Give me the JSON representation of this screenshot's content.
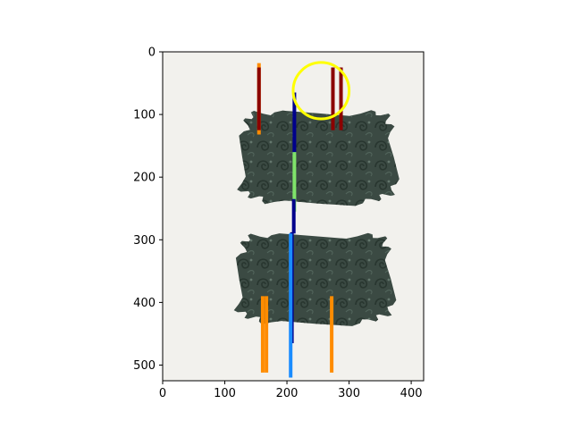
{
  "plot": {
    "x_range": [
      0,
      420
    ],
    "y_range": [
      0,
      525
    ],
    "y_inverted": true,
    "x_ticks": [
      "0",
      "100",
      "200",
      "300",
      "400"
    ],
    "x_tick_values": [
      0,
      100,
      200,
      300,
      400
    ],
    "y_ticks": [
      "0",
      "100",
      "200",
      "300",
      "400",
      "500"
    ],
    "y_tick_values": [
      0,
      100,
      200,
      300,
      400,
      500
    ],
    "image_extent": {
      "x": [
        0,
        420
      ],
      "y": [
        0,
        525
      ]
    },
    "image_background_color": "#f2f1ed",
    "image_subject": "two dark green carved jade plaques with scroll motifs",
    "jade_color": "#3b4a43"
  },
  "annotations": {
    "segments": [
      {
        "x": 155,
        "y1": 18,
        "y2": 132,
        "color": "#ff8c00"
      },
      {
        "x": 155,
        "y1": 25,
        "y2": 125,
        "color": "#8b0000"
      },
      {
        "x": 274,
        "y1": 25,
        "y2": 125,
        "color": "#8b0000"
      },
      {
        "x": 287,
        "y1": 25,
        "y2": 125,
        "color": "#8b0000"
      },
      {
        "x": 212,
        "y1": 65,
        "y2": 165,
        "color": "#00008b"
      },
      {
        "x": 212,
        "y1": 160,
        "y2": 255,
        "color": "#7fe36a"
      },
      {
        "x": 211,
        "y1": 235,
        "y2": 290,
        "color": "#00008b"
      },
      {
        "x": 208,
        "y1": 288,
        "y2": 465,
        "color": "#00008b"
      },
      {
        "x": 206,
        "y1": 290,
        "y2": 520,
        "color": "#1a8cff"
      },
      {
        "x": 161,
        "y1": 390,
        "y2": 512,
        "color": "#ff8c00"
      },
      {
        "x": 167,
        "y1": 390,
        "y2": 512,
        "color": "#ff8c00"
      },
      {
        "x": 272,
        "y1": 390,
        "y2": 512,
        "color": "#ff8c00"
      }
    ],
    "circle": {
      "cx": 255,
      "cy": 62,
      "r": 45,
      "color": "#ffff00"
    }
  }
}
